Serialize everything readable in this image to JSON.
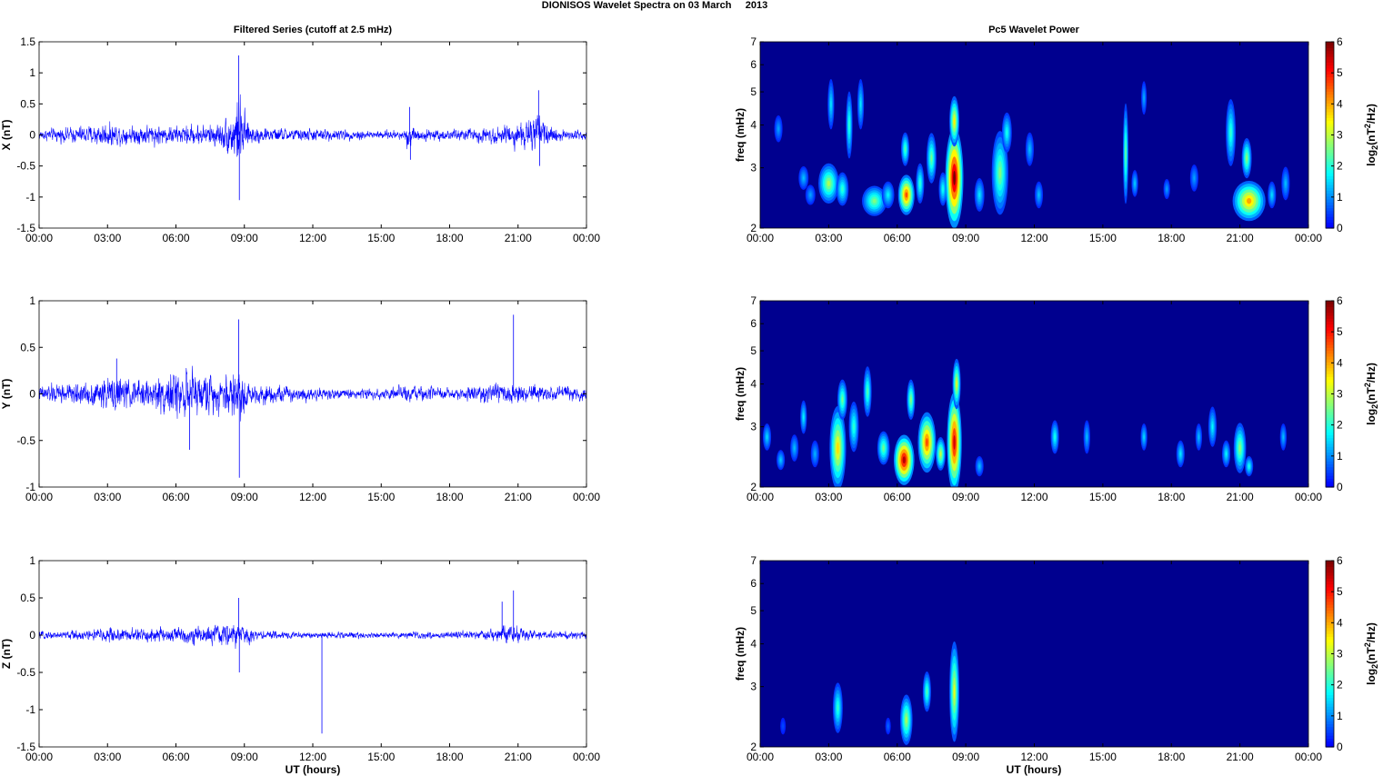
{
  "figure": {
    "title": "DIONISOS Wavelet Spectra on 03 March     2013",
    "left_title": "Filtered Series (cutoff at 2.5 mHz)",
    "right_title": "Pc5 Wavelet Power",
    "xlabel": "UT (hours)",
    "line_color": "#0000ff",
    "colormap": "jet",
    "background_color": "#00008f"
  },
  "chart_data": [
    {
      "type": "line",
      "id": "series-x",
      "ylabel": "X (nT)",
      "ylim": [
        -1.5,
        1.5
      ],
      "yticks": [
        "-1.5",
        "-1",
        "-0.5",
        "0",
        "0.5",
        "1",
        "1.5"
      ],
      "yticks_values": [
        -1.5,
        -1,
        -0.5,
        0,
        0.5,
        1,
        1.5
      ],
      "xlim": [
        0,
        24
      ],
      "xticks": [
        "00:00",
        "03:00",
        "06:00",
        "09:00",
        "12:00",
        "15:00",
        "18:00",
        "21:00",
        "00:00"
      ],
      "xticks_values": [
        0,
        3,
        6,
        9,
        12,
        15,
        18,
        21,
        24
      ],
      "series": [
        {
          "envelope": [
            [
              0,
              0.15
            ],
            [
              1,
              0.2
            ],
            [
              2,
              0.25
            ],
            [
              3,
              0.35
            ],
            [
              4,
              0.25
            ],
            [
              5,
              0.3
            ],
            [
              6,
              0.25
            ],
            [
              7,
              0.3
            ],
            [
              8,
              0.35
            ],
            [
              8.6,
              0.8
            ],
            [
              8.8,
              1.1
            ],
            [
              9.2,
              0.3
            ],
            [
              10,
              0.2
            ],
            [
              12,
              0.18
            ],
            [
              15,
              0.12
            ],
            [
              16,
              0.15
            ],
            [
              16.2,
              0.45
            ],
            [
              16.5,
              0.18
            ],
            [
              18,
              0.15
            ],
            [
              20,
              0.25
            ],
            [
              21,
              0.35
            ],
            [
              21.8,
              0.55
            ],
            [
              22.5,
              0.2
            ],
            [
              24,
              0.15
            ]
          ],
          "peaks": [
            {
              "x": 8.75,
              "y": 1.28
            },
            {
              "x": 8.78,
              "y": -1.05
            },
            {
              "x": 16.25,
              "y": 0.45
            },
            {
              "x": 16.28,
              "y": -0.4
            },
            {
              "x": 21.9,
              "y": 0.72
            },
            {
              "x": 21.95,
              "y": -0.5
            }
          ]
        }
      ]
    },
    {
      "type": "line",
      "id": "series-y",
      "ylabel": "Y (nT)",
      "ylim": [
        -1,
        1
      ],
      "yticks": [
        "-1",
        "-0.5",
        "0",
        "0.5",
        "1"
      ],
      "yticks_values": [
        -1,
        -0.5,
        0,
        0.5,
        1
      ],
      "xlim": [
        0,
        24
      ],
      "xticks": [
        "00:00",
        "03:00",
        "06:00",
        "09:00",
        "12:00",
        "15:00",
        "18:00",
        "21:00",
        "00:00"
      ],
      "xticks_values": [
        0,
        3,
        6,
        9,
        12,
        15,
        18,
        21,
        24
      ],
      "series": [
        {
          "envelope": [
            [
              0,
              0.15
            ],
            [
              1,
              0.2
            ],
            [
              2,
              0.2
            ],
            [
              3,
              0.3
            ],
            [
              3.5,
              0.35
            ],
            [
              4,
              0.25
            ],
            [
              5,
              0.3
            ],
            [
              6,
              0.45
            ],
            [
              7,
              0.4
            ],
            [
              8,
              0.35
            ],
            [
              8.8,
              0.6
            ],
            [
              9.2,
              0.2
            ],
            [
              11,
              0.15
            ],
            [
              13,
              0.1
            ],
            [
              15,
              0.1
            ],
            [
              16,
              0.15
            ],
            [
              18,
              0.1
            ],
            [
              20,
              0.2
            ],
            [
              21,
              0.2
            ],
            [
              22,
              0.15
            ],
            [
              24,
              0.15
            ]
          ],
          "peaks": [
            {
              "x": 8.75,
              "y": 0.8
            },
            {
              "x": 8.78,
              "y": -0.9
            },
            {
              "x": 20.8,
              "y": 0.85
            },
            {
              "x": 6.6,
              "y": -0.6
            },
            {
              "x": 3.4,
              "y": 0.38
            }
          ]
        }
      ]
    },
    {
      "type": "line",
      "id": "series-z",
      "ylabel": "Z (nT)",
      "ylim": [
        -1.5,
        1
      ],
      "yticks": [
        "-1.5",
        "-1",
        "-0.5",
        "0",
        "0.5",
        "1"
      ],
      "yticks_values": [
        -1.5,
        -1,
        -0.5,
        0,
        0.5,
        1
      ],
      "xlim": [
        0,
        24
      ],
      "xticks": [
        "00:00",
        "03:00",
        "06:00",
        "09:00",
        "12:00",
        "15:00",
        "18:00",
        "21:00",
        "00:00"
      ],
      "xticks_values": [
        0,
        3,
        6,
        9,
        12,
        15,
        18,
        21,
        24
      ],
      "xlabel": "UT (hours)",
      "series": [
        {
          "envelope": [
            [
              0,
              0.08
            ],
            [
              2,
              0.12
            ],
            [
              3,
              0.2
            ],
            [
              4,
              0.15
            ],
            [
              6,
              0.2
            ],
            [
              7,
              0.2
            ],
            [
              8.8,
              0.3
            ],
            [
              9.5,
              0.1
            ],
            [
              12,
              0.08
            ],
            [
              15,
              0.07
            ],
            [
              18,
              0.08
            ],
            [
              20,
              0.12
            ],
            [
              20.5,
              0.25
            ],
            [
              21,
              0.2
            ],
            [
              22,
              0.1
            ],
            [
              24,
              0.08
            ]
          ],
          "peaks": [
            {
              "x": 8.75,
              "y": 0.5
            },
            {
              "x": 8.78,
              "y": -0.5
            },
            {
              "x": 12.4,
              "y": -1.32
            },
            {
              "x": 20.8,
              "y": 0.6
            },
            {
              "x": 20.3,
              "y": 0.45
            }
          ]
        }
      ]
    },
    {
      "type": "heatmap",
      "id": "wavelet-x",
      "ylabel": "freq (mHz)",
      "yscale": "log",
      "ylim": [
        2,
        7
      ],
      "yticks": [
        "2",
        "3",
        "4",
        "5",
        "6",
        "7"
      ],
      "yticks_values": [
        2,
        3,
        4,
        5,
        6,
        7
      ],
      "xlim": [
        0,
        24
      ],
      "xticks": [
        "00:00",
        "03:00",
        "06:00",
        "09:00",
        "12:00",
        "15:00",
        "18:00",
        "21:00",
        "00:00"
      ],
      "xticks_values": [
        0,
        3,
        6,
        9,
        12,
        15,
        18,
        21,
        24
      ],
      "clim": [
        0,
        6
      ],
      "colorbar_ticks": [
        "0",
        "1",
        "2",
        "3",
        "4",
        "5",
        "6"
      ],
      "colorbar_label": "log2(nT2/Hz)",
      "blobs": [
        {
          "t": 0.8,
          "f": 3.9,
          "dt": 0.1,
          "df": 0.08,
          "v": 1.0
        },
        {
          "t": 1.9,
          "f": 2.8,
          "dt": 0.12,
          "df": 0.07,
          "v": 1.2
        },
        {
          "t": 2.2,
          "f": 2.5,
          "dt": 0.12,
          "df": 0.06,
          "v": 1.0
        },
        {
          "t": 3.0,
          "f": 2.7,
          "dt": 0.25,
          "df": 0.12,
          "v": 2.8
        },
        {
          "t": 3.1,
          "f": 4.6,
          "dt": 0.08,
          "df": 0.15,
          "v": 1.5
        },
        {
          "t": 3.6,
          "f": 2.6,
          "dt": 0.15,
          "df": 0.1,
          "v": 2.0
        },
        {
          "t": 3.9,
          "f": 4.0,
          "dt": 0.08,
          "df": 0.2,
          "v": 2.0
        },
        {
          "t": 4.4,
          "f": 4.6,
          "dt": 0.08,
          "df": 0.15,
          "v": 1.5
        },
        {
          "t": 5.0,
          "f": 2.4,
          "dt": 0.3,
          "df": 0.09,
          "v": 2.5
        },
        {
          "t": 5.6,
          "f": 2.5,
          "dt": 0.15,
          "df": 0.08,
          "v": 1.6
        },
        {
          "t": 6.4,
          "f": 2.5,
          "dt": 0.2,
          "df": 0.12,
          "v": 4.6
        },
        {
          "t": 6.35,
          "f": 3.4,
          "dt": 0.1,
          "df": 0.1,
          "v": 2.2
        },
        {
          "t": 7.0,
          "f": 2.7,
          "dt": 0.1,
          "df": 0.12,
          "v": 2.0
        },
        {
          "t": 7.5,
          "f": 3.2,
          "dt": 0.12,
          "df": 0.15,
          "v": 2.4
        },
        {
          "t": 8.0,
          "f": 2.6,
          "dt": 0.1,
          "df": 0.1,
          "v": 1.8
        },
        {
          "t": 8.5,
          "f": 2.8,
          "dt": 0.22,
          "df": 0.3,
          "v": 6.0
        },
        {
          "t": 8.5,
          "f": 4.1,
          "dt": 0.12,
          "df": 0.15,
          "v": 3.5
        },
        {
          "t": 9.6,
          "f": 2.5,
          "dt": 0.12,
          "df": 0.1,
          "v": 1.5
        },
        {
          "t": 10.5,
          "f": 2.9,
          "dt": 0.2,
          "df": 0.25,
          "v": 2.5
        },
        {
          "t": 10.8,
          "f": 3.8,
          "dt": 0.12,
          "df": 0.12,
          "v": 1.8
        },
        {
          "t": 11.8,
          "f": 3.4,
          "dt": 0.1,
          "df": 0.1,
          "v": 1.2
        },
        {
          "t": 12.2,
          "f": 2.5,
          "dt": 0.1,
          "df": 0.08,
          "v": 1.2
        },
        {
          "t": 16.0,
          "f": 3.3,
          "dt": 0.06,
          "df": 0.3,
          "v": 2.4
        },
        {
          "t": 16.4,
          "f": 2.7,
          "dt": 0.08,
          "df": 0.08,
          "v": 1.3
        },
        {
          "t": 16.8,
          "f": 4.8,
          "dt": 0.06,
          "df": 0.1,
          "v": 1.1
        },
        {
          "t": 17.8,
          "f": 2.6,
          "dt": 0.08,
          "df": 0.06,
          "v": 1.0
        },
        {
          "t": 19.0,
          "f": 2.8,
          "dt": 0.1,
          "df": 0.08,
          "v": 1.0
        },
        {
          "t": 20.6,
          "f": 3.8,
          "dt": 0.12,
          "df": 0.2,
          "v": 2.0
        },
        {
          "t": 21.4,
          "f": 2.4,
          "dt": 0.4,
          "df": 0.12,
          "v": 4.0
        },
        {
          "t": 21.3,
          "f": 3.2,
          "dt": 0.12,
          "df": 0.12,
          "v": 2.6
        },
        {
          "t": 22.4,
          "f": 2.5,
          "dt": 0.1,
          "df": 0.08,
          "v": 1.4
        },
        {
          "t": 23.0,
          "f": 2.7,
          "dt": 0.1,
          "df": 0.1,
          "v": 1.2
        }
      ]
    },
    {
      "type": "heatmap",
      "id": "wavelet-y",
      "ylabel": "freq (mHz)",
      "yscale": "log",
      "ylim": [
        2,
        7
      ],
      "yticks": [
        "2",
        "3",
        "4",
        "5",
        "6",
        "7"
      ],
      "yticks_values": [
        2,
        3,
        4,
        5,
        6,
        7
      ],
      "xlim": [
        0,
        24
      ],
      "xticks": [
        "00:00",
        "03:00",
        "06:00",
        "09:00",
        "12:00",
        "15:00",
        "18:00",
        "21:00",
        "00:00"
      ],
      "xticks_values": [
        0,
        3,
        6,
        9,
        12,
        15,
        18,
        21,
        24
      ],
      "clim": [
        0,
        6
      ],
      "colorbar_ticks": [
        "0",
        "1",
        "2",
        "3",
        "4",
        "5",
        "6"
      ],
      "colorbar_label": "log2(nT2/Hz)",
      "blobs": [
        {
          "t": 0.3,
          "f": 2.8,
          "dt": 0.1,
          "df": 0.08,
          "v": 1.4
        },
        {
          "t": 0.9,
          "f": 2.4,
          "dt": 0.1,
          "df": 0.06,
          "v": 1.3
        },
        {
          "t": 1.5,
          "f": 2.6,
          "dt": 0.1,
          "df": 0.08,
          "v": 1.2
        },
        {
          "t": 1.9,
          "f": 3.2,
          "dt": 0.08,
          "df": 0.1,
          "v": 1.6
        },
        {
          "t": 2.4,
          "f": 2.5,
          "dt": 0.1,
          "df": 0.08,
          "v": 1.1
        },
        {
          "t": 3.4,
          "f": 2.6,
          "dt": 0.2,
          "df": 0.25,
          "v": 3.6
        },
        {
          "t": 3.6,
          "f": 3.6,
          "dt": 0.12,
          "df": 0.12,
          "v": 2.4
        },
        {
          "t": 4.1,
          "f": 3.0,
          "dt": 0.12,
          "df": 0.15,
          "v": 2.0
        },
        {
          "t": 4.7,
          "f": 3.8,
          "dt": 0.1,
          "df": 0.15,
          "v": 2.2
        },
        {
          "t": 5.4,
          "f": 2.6,
          "dt": 0.15,
          "df": 0.1,
          "v": 2.4
        },
        {
          "t": 6.3,
          "f": 2.4,
          "dt": 0.25,
          "df": 0.15,
          "v": 5.6
        },
        {
          "t": 6.6,
          "f": 3.6,
          "dt": 0.1,
          "df": 0.12,
          "v": 2.6
        },
        {
          "t": 7.3,
          "f": 2.7,
          "dt": 0.22,
          "df": 0.18,
          "v": 4.6
        },
        {
          "t": 7.9,
          "f": 2.5,
          "dt": 0.12,
          "df": 0.1,
          "v": 3.0
        },
        {
          "t": 8.5,
          "f": 2.7,
          "dt": 0.18,
          "df": 0.3,
          "v": 5.4
        },
        {
          "t": 8.6,
          "f": 4.0,
          "dt": 0.1,
          "df": 0.15,
          "v": 3.2
        },
        {
          "t": 9.6,
          "f": 2.3,
          "dt": 0.1,
          "df": 0.06,
          "v": 1.2
        },
        {
          "t": 12.9,
          "f": 2.8,
          "dt": 0.1,
          "df": 0.1,
          "v": 1.8
        },
        {
          "t": 14.3,
          "f": 2.8,
          "dt": 0.08,
          "df": 0.1,
          "v": 1.2
        },
        {
          "t": 16.8,
          "f": 2.8,
          "dt": 0.08,
          "df": 0.08,
          "v": 1.4
        },
        {
          "t": 18.4,
          "f": 2.5,
          "dt": 0.1,
          "df": 0.08,
          "v": 1.5
        },
        {
          "t": 19.2,
          "f": 2.8,
          "dt": 0.08,
          "df": 0.08,
          "v": 1.2
        },
        {
          "t": 19.8,
          "f": 3.0,
          "dt": 0.1,
          "df": 0.12,
          "v": 1.6
        },
        {
          "t": 20.4,
          "f": 2.5,
          "dt": 0.1,
          "df": 0.08,
          "v": 1.6
        },
        {
          "t": 21.0,
          "f": 2.6,
          "dt": 0.15,
          "df": 0.15,
          "v": 2.6
        },
        {
          "t": 21.4,
          "f": 2.3,
          "dt": 0.1,
          "df": 0.06,
          "v": 1.8
        },
        {
          "t": 22.9,
          "f": 2.8,
          "dt": 0.08,
          "df": 0.08,
          "v": 1.2
        }
      ]
    },
    {
      "type": "heatmap",
      "id": "wavelet-z",
      "ylabel": "freq (mHz)",
      "yscale": "log",
      "ylim": [
        2,
        7
      ],
      "yticks": [
        "2",
        "3",
        "4",
        "5",
        "6",
        "7"
      ],
      "yticks_values": [
        2,
        3,
        4,
        5,
        6,
        7
      ],
      "xlim": [
        0,
        24
      ],
      "xticks": [
        "00:00",
        "03:00",
        "06:00",
        "09:00",
        "12:00",
        "15:00",
        "18:00",
        "21:00",
        "00:00"
      ],
      "xticks_values": [
        0,
        3,
        6,
        9,
        12,
        15,
        18,
        21,
        24
      ],
      "xlabel": "UT (hours)",
      "clim": [
        0,
        6
      ],
      "colorbar_ticks": [
        "0",
        "1",
        "2",
        "3",
        "4",
        "5",
        "6"
      ],
      "colorbar_label": "log2(nT2/Hz)",
      "blobs": [
        {
          "t": 3.4,
          "f": 2.6,
          "dt": 0.12,
          "df": 0.15,
          "v": 2.0
        },
        {
          "t": 5.6,
          "f": 2.3,
          "dt": 0.06,
          "df": 0.05,
          "v": 0.6
        },
        {
          "t": 6.4,
          "f": 2.4,
          "dt": 0.15,
          "df": 0.15,
          "v": 2.8
        },
        {
          "t": 7.3,
          "f": 2.9,
          "dt": 0.1,
          "df": 0.12,
          "v": 2.2
        },
        {
          "t": 8.5,
          "f": 2.9,
          "dt": 0.12,
          "df": 0.3,
          "v": 3.2
        },
        {
          "t": 1.0,
          "f": 2.3,
          "dt": 0.05,
          "df": 0.05,
          "v": 0.4
        }
      ]
    }
  ]
}
